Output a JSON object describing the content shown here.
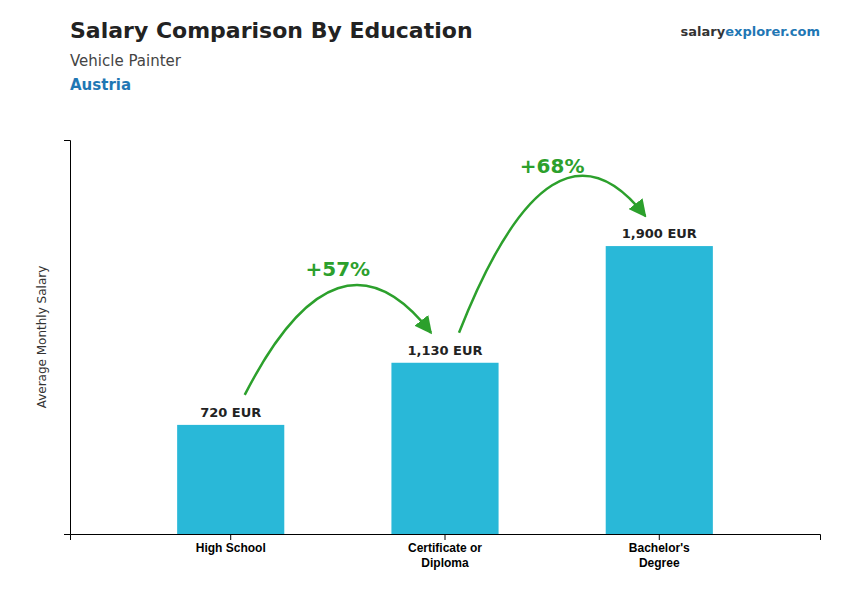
{
  "chart_data": {
    "type": "bar",
    "title": "Salary Comparison By Education",
    "subtitle": [
      "Vehicle Painter",
      "Austria"
    ],
    "ylabel": "Average Monthly Salary",
    "categories": [
      "High School",
      "Certificate or\nDiploma",
      "Bachelor's\nDegree"
    ],
    "values": [
      720,
      1130,
      1900
    ],
    "value_labels": [
      "720 EUR",
      "1,130 EUR",
      "1,900 EUR"
    ],
    "data_labels": true,
    "color": "#29b8d8",
    "ylim": [
      0,
      2600
    ],
    "grid": false,
    "tick_labels": "x",
    "annotations": [
      "+57%",
      "+68%",
      "salary",
      "explorer.com"
    ]
  }
}
